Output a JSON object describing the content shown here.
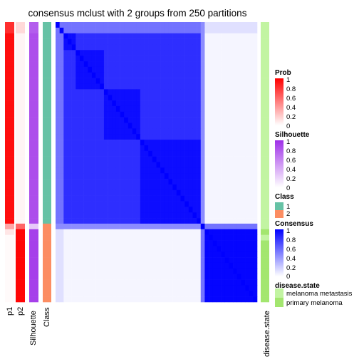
{
  "chart_data": {
    "type": "heatmap",
    "title": "consensus mclust with 2 groups from 250 partitions",
    "columns": [
      "p1",
      "p2",
      "Silhouette",
      "Class"
    ],
    "right_annotation": "disease.state",
    "n_samples": 50,
    "group_sizes": [
      36,
      14
    ],
    "consensus_blocks": [
      [
        1.0,
        0.03
      ],
      [
        0.03,
        1.0
      ]
    ],
    "legends": [
      {
        "title": "Prob",
        "ticks": [
          "1",
          "0.8",
          "0.6",
          "0.4",
          "0.2",
          "0"
        ],
        "low": "#ffffff",
        "high": "#ff0000"
      },
      {
        "title": "Silhouette",
        "ticks": [
          "1",
          "0.8",
          "0.6",
          "0.4",
          "0.2",
          "0"
        ],
        "low": "#ffffff",
        "high": "#9e2fe8"
      },
      {
        "title": "Class",
        "items": [
          {
            "label": "1",
            "color": "#66c2a5"
          },
          {
            "label": "2",
            "color": "#fc8d62"
          }
        ]
      },
      {
        "title": "Consensus",
        "ticks": [
          "1",
          "0.8",
          "0.6",
          "0.4",
          "0.2",
          "0"
        ],
        "low": "#ffffff",
        "high": "#0000ff"
      },
      {
        "title": "disease.state",
        "items": [
          {
            "label": "melanoma metastasis",
            "color": "#c2f4a2"
          },
          {
            "label": "primary melanoma",
            "color": "#a3e66f"
          }
        ]
      }
    ]
  }
}
